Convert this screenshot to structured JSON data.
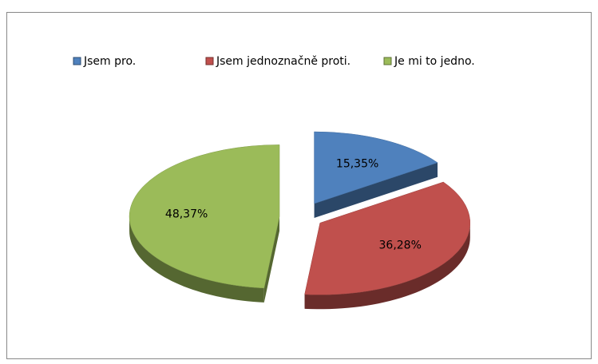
{
  "chart_data": {
    "type": "pie3d",
    "categories": [
      "Jsem pro.",
      "Jsem jednoznačně proti.",
      "Je mi to jedno."
    ],
    "values": [
      15.35,
      36.28,
      48.37
    ],
    "value_labels": [
      "15,35%",
      "36,28%",
      "48,37%"
    ],
    "colors": [
      "#4f81bd",
      "#c0504d",
      "#9bbb59"
    ],
    "legend": "top"
  }
}
